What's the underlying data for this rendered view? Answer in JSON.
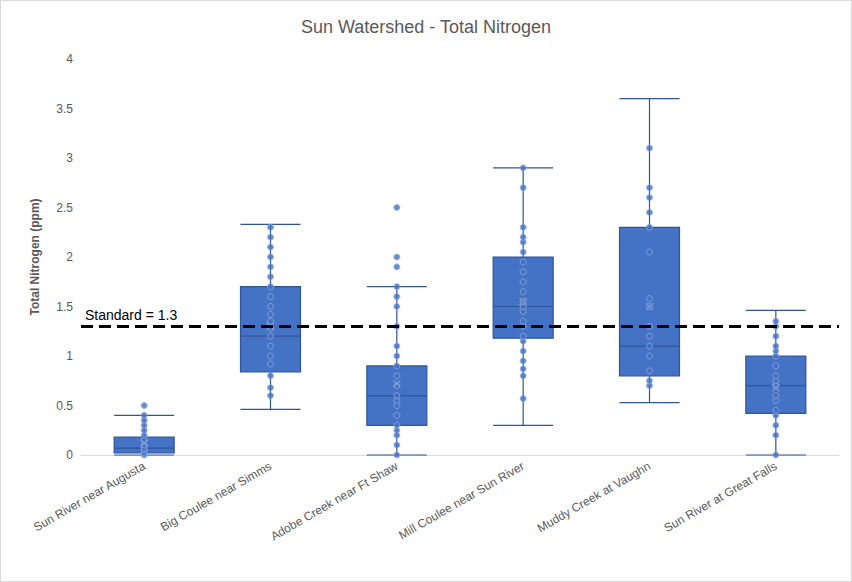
{
  "chart_data": {
    "type": "boxplot",
    "title": "Sun Watershed - Total Nitrogen",
    "y_label": "Total Nitrogen (ppm)",
    "categories": [
      "Sun River near Augusta",
      "Big Coulee near Simms",
      "Adobe Creek near Ft Shaw",
      "Mill Coulee near Sun River",
      "Muddy Creek at Vaughn",
      "Sun River at Great Falls"
    ],
    "boxes": [
      [
        0,
        0.02,
        0.07,
        0.18,
        0.4
      ],
      [
        0.46,
        0.84,
        1.2,
        1.7,
        2.33
      ],
      [
        0,
        0.3,
        0.6,
        0.9,
        1.7
      ],
      [
        0.3,
        1.18,
        1.5,
        2.0,
        2.9
      ],
      [
        0.53,
        0.8,
        1.1,
        2.3,
        3.6
      ],
      [
        0,
        0.42,
        0.7,
        1.0,
        1.46
      ]
    ],
    "points": [
      [
        0,
        0.02,
        0.05,
        0.07,
        0.1,
        0.15,
        0.2,
        0.25,
        0.3,
        0.35,
        0.4,
        0.5
      ],
      [
        0.6,
        0.68,
        0.8,
        0.92,
        1.0,
        1.1,
        1.2,
        1.28,
        1.35,
        1.42,
        1.5,
        1.6,
        1.7,
        1.8,
        1.9,
        2.0,
        2.1,
        2.2,
        2.3
      ],
      [
        0,
        0.1,
        0.2,
        0.25,
        0.3,
        0.4,
        0.5,
        0.55,
        0.6,
        0.7,
        0.8,
        0.9,
        1.0,
        1.1,
        1.3,
        1.5,
        1.6,
        1.7,
        1.9,
        2.0,
        2.5
      ],
      [
        0.57,
        0.8,
        0.87,
        0.95,
        1.05,
        1.15,
        1.2,
        1.3,
        1.35,
        1.45,
        1.5,
        1.55,
        1.65,
        1.75,
        1.85,
        1.95,
        2.05,
        2.15,
        2.2,
        2.3,
        2.7,
        2.9
      ],
      [
        0.7,
        0.75,
        0.85,
        1.0,
        1.1,
        1.2,
        1.3,
        1.5,
        1.58,
        2.05,
        2.3,
        2.45,
        2.6,
        2.7,
        3.1
      ],
      [
        0,
        0.2,
        0.3,
        0.4,
        0.45,
        0.55,
        0.6,
        0.7,
        0.75,
        0.8,
        0.9,
        1.0,
        1.05,
        1.1,
        1.2,
        1.3,
        1.35
      ]
    ],
    "means": [
      0.12,
      1.3,
      0.72,
      1.55,
      1.5,
      0.68
    ],
    "marker": "x",
    "color": "#4472c4",
    "reference_line": {
      "value": 1.3,
      "label": "Standard = 1.3",
      "line_style": "dashed"
    },
    "ylim": [
      0,
      4
    ],
    "yticks": [
      0,
      0.5,
      1,
      1.5,
      2,
      2.5,
      3,
      3.5,
      4
    ],
    "grid": false
  }
}
